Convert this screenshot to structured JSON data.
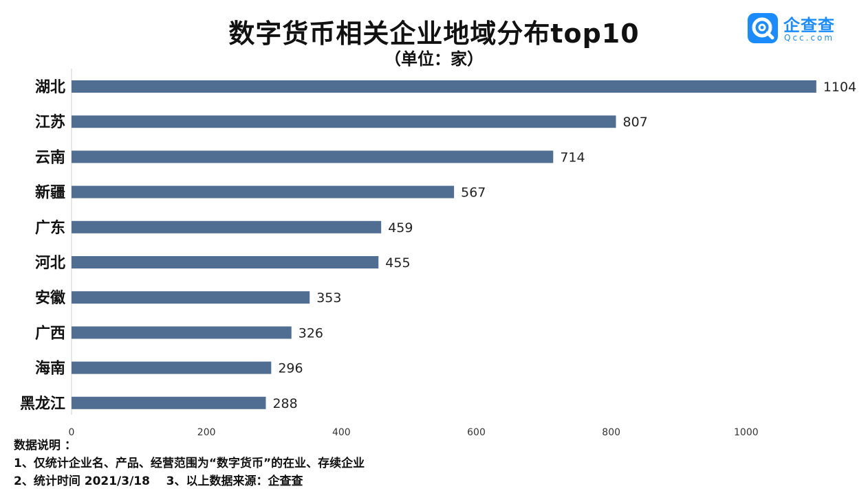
{
  "chart_data": {
    "type": "bar",
    "orientation": "horizontal",
    "title": "数字货币相关企业地域分布top10",
    "subtitle": "（单位：家）",
    "categories": [
      "湖北",
      "江苏",
      "云南",
      "新疆",
      "广东",
      "河北",
      "安徽",
      "广西",
      "海南",
      "黑龙江"
    ],
    "values": [
      1104,
      807,
      714,
      567,
      459,
      455,
      353,
      326,
      296,
      288
    ],
    "xticks": [
      0,
      200,
      400,
      600,
      800,
      1000
    ],
    "xlim": [
      0,
      1200
    ],
    "bar_color": "#4f6e91",
    "xlabel": "",
    "ylabel": ""
  },
  "brand": {
    "name": "企查查",
    "domain": "Qcc.com",
    "color": "#1a8cff"
  },
  "notes": {
    "heading": "数据说明 ：",
    "line1": "1、仅统计企业名、产品、经营范围为“数字货币”的在业、存续企业",
    "line2": "2、统计时间 2021/3/18    3、以上数据来源：企查查"
  }
}
